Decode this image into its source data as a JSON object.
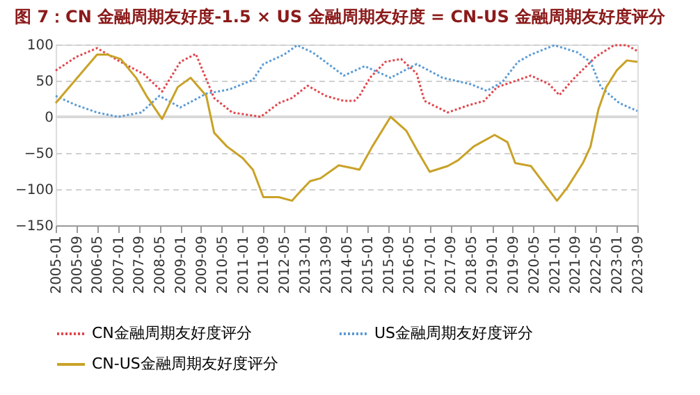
{
  "chart_data": {
    "type": "line",
    "title": "图 7：CN 金融周期友好度-1.5 × US 金融周期友好度 = CN-US 金融周期友好度评分",
    "xlim": [
      "2005-01",
      "2023-09"
    ],
    "xticks": [
      "2005-01",
      "2005-09",
      "2006-05",
      "2007-01",
      "2007-09",
      "2008-05",
      "2009-01",
      "2009-09",
      "2010-05",
      "2011-01",
      "2011-09",
      "2012-05",
      "2013-01",
      "2013-09",
      "2014-05",
      "2015-01",
      "2015-09",
      "2016-05",
      "2017-01",
      "2017-09",
      "2018-05",
      "2019-01",
      "2019-09",
      "2020-05",
      "2021-01",
      "2021-09",
      "2022-05",
      "2023-01",
      "2023-09"
    ],
    "ylim": [
      -150,
      100
    ],
    "yticks": [
      -150,
      -100,
      -50,
      0,
      50,
      100
    ],
    "grid": "y",
    "legend": "bottom",
    "ref_lines": [
      {
        "axis": "y",
        "value": 0,
        "color": "#d9d9d9"
      }
    ],
    "series": [
      {
        "name": "CN金融周期友好度评分",
        "color": "#e0474c",
        "line_style": "dotted",
        "x": [
          "2005-01",
          "2005-09",
          "2006-05",
          "2007-02",
          "2007-11",
          "2008-06",
          "2009-01",
          "2009-07",
          "2010-02",
          "2010-09",
          "2011-08",
          "2012-03",
          "2012-08",
          "2013-02",
          "2013-09",
          "2014-04",
          "2014-08",
          "2014-10",
          "2015-02",
          "2015-08",
          "2016-02",
          "2016-08",
          "2016-11",
          "2017-08",
          "2018-04",
          "2018-10",
          "2019-03",
          "2020-04",
          "2020-11",
          "2021-03",
          "2021-08",
          "2022-05",
          "2022-12",
          "2023-05",
          "2023-09"
        ],
        "values": [
          64,
          83,
          95,
          76,
          59,
          35,
          76,
          87,
          26,
          6,
          0,
          19,
          26,
          43,
          29,
          22,
          22,
          29,
          54,
          76,
          80,
          60,
          22,
          6,
          16,
          22,
          41,
          57,
          45,
          30,
          51,
          83,
          99,
          99,
          91
        ]
      },
      {
        "name": "US金融周期友好度评分",
        "color": "#5b9bd5",
        "line_style": "dotted",
        "x": [
          "2005-01",
          "2005-09",
          "2006-05",
          "2007-01",
          "2007-10",
          "2008-05",
          "2009-01",
          "2009-11",
          "2010-08",
          "2011-05",
          "2011-09",
          "2012-05",
          "2012-10",
          "2013-04",
          "2013-10",
          "2014-04",
          "2014-12",
          "2015-10",
          "2016-08",
          "2017-06",
          "2018-05",
          "2018-11",
          "2019-05",
          "2019-11",
          "2020-04",
          "2021-01",
          "2021-10",
          "2022-03",
          "2022-07",
          "2023-02",
          "2023-09"
        ],
        "values": [
          29,
          16,
          6,
          0,
          6,
          29,
          13,
          32,
          38,
          51,
          73,
          86,
          99,
          89,
          73,
          57,
          70,
          54,
          73,
          54,
          45,
          36,
          48,
          76,
          86,
          99,
          89,
          76,
          41,
          19,
          8
        ]
      },
      {
        "name": "CN-US金融周期友好度评分",
        "color": "#c9a227",
        "line_style": "solid",
        "x": [
          "2005-01",
          "2006-05",
          "2006-09",
          "2007-02",
          "2007-08",
          "2007-12",
          "2008-06",
          "2008-12",
          "2009-05",
          "2009-11",
          "2010-02",
          "2010-07",
          "2011-01",
          "2011-05",
          "2011-09",
          "2012-03",
          "2012-08",
          "2012-10",
          "2013-03",
          "2013-07",
          "2014-02",
          "2014-06",
          "2014-10",
          "2015-03",
          "2015-10",
          "2016-04",
          "2016-08",
          "2017-01",
          "2017-08",
          "2017-12",
          "2018-06",
          "2019-02",
          "2019-07",
          "2019-10",
          "2020-04",
          "2020-09",
          "2021-02",
          "2021-06",
          "2021-12",
          "2022-03",
          "2022-06",
          "2022-09",
          "2023-01",
          "2023-05",
          "2023-09"
        ],
        "values": [
          19,
          86,
          86,
          80,
          54,
          29,
          -3,
          41,
          54,
          29,
          -22,
          -41,
          -57,
          -73,
          -111,
          -111,
          -116,
          -108,
          -89,
          -85,
          -67,
          -70,
          -73,
          -41,
          0,
          -19,
          -45,
          -76,
          -68,
          -60,
          -41,
          -25,
          -35,
          -64,
          -68,
          -92,
          -116,
          -98,
          -64,
          -41,
          10,
          41,
          64,
          78,
          76
        ]
      }
    ]
  }
}
